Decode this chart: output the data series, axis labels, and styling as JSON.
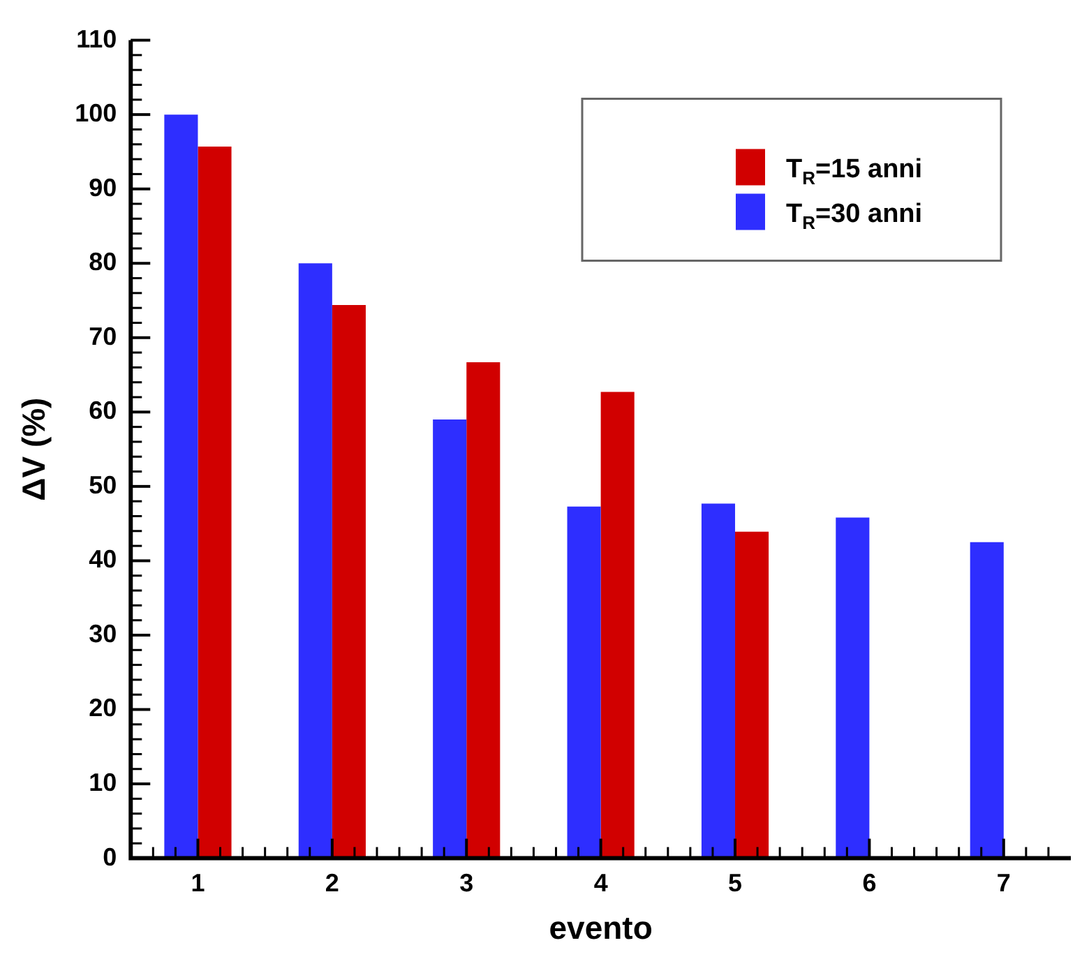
{
  "chart_data": {
    "type": "bar",
    "xlabel": "evento",
    "ylabel": "ΔV (%)",
    "categories": [
      "1",
      "2",
      "3",
      "4",
      "5",
      "6",
      "7"
    ],
    "series": [
      {
        "name": "T$_{R}$=30 anni",
        "color": "#2e2eff",
        "values": [
          100,
          80,
          59,
          47.3,
          47.7,
          45.8,
          42.5
        ]
      },
      {
        "name": "T$_{R}$=15 anni",
        "color": "#d10000",
        "values": [
          95.7,
          74.4,
          66.7,
          62.7,
          43.9,
          null,
          null
        ]
      }
    ],
    "ylim": [
      0,
      110
    ],
    "yticks": [
      0,
      10,
      20,
      30,
      40,
      50,
      60,
      70,
      80,
      90,
      100,
      110
    ],
    "grid": false,
    "legend": "top right"
  }
}
